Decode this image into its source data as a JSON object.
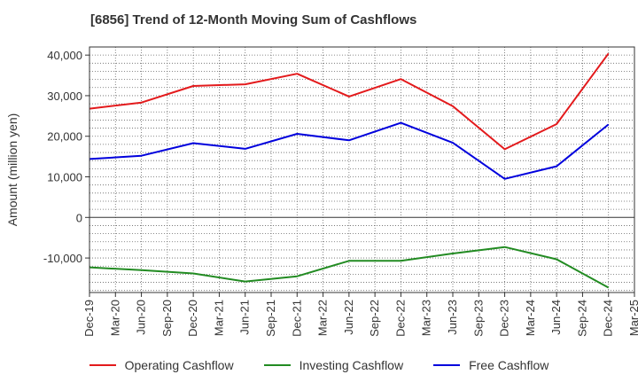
{
  "chart_data": {
    "type": "line",
    "title": "[6856]  Trend of 12-Month Moving Sum of Cashflows",
    "xlabel": "",
    "ylabel": "Amount (million yen)",
    "ylim": [
      -18500,
      42000
    ],
    "yticks": [
      -10000,
      0,
      10000,
      20000,
      30000,
      40000
    ],
    "ytick_labels": [
      "-10,000",
      "0",
      "10,000",
      "20,000",
      "30,000",
      "40,000"
    ],
    "grid": true,
    "legend_position": "bottom",
    "categories": [
      "Dec-19",
      "Mar-20",
      "Jun-20",
      "Sep-20",
      "Dec-20",
      "Mar-21",
      "Jun-21",
      "Sep-21",
      "Dec-21",
      "Mar-22",
      "Jun-22",
      "Sep-22",
      "Dec-22",
      "Mar-23",
      "Jun-23",
      "Sep-23",
      "Dec-23",
      "Mar-24",
      "Jun-24",
      "Sep-24",
      "Dec-24",
      "Mar-25"
    ],
    "series": [
      {
        "name": "Operating Cashflow",
        "color": "#e31a1c",
        "values": [
          26800,
          null,
          28300,
          null,
          32400,
          null,
          32800,
          null,
          35400,
          null,
          29800,
          null,
          34100,
          null,
          27400,
          null,
          16800,
          null,
          23000,
          null,
          40400,
          null
        ]
      },
      {
        "name": "Investing Cashflow",
        "color": "#228b22",
        "values": [
          -12300,
          null,
          -13000,
          null,
          -13800,
          null,
          -15800,
          null,
          -14500,
          null,
          -10700,
          null,
          -10700,
          null,
          -8900,
          null,
          -7300,
          null,
          -10300,
          null,
          -17300,
          null
        ]
      },
      {
        "name": "Free Cashflow",
        "color": "#0000dd",
        "values": [
          14400,
          null,
          15200,
          null,
          18300,
          null,
          16900,
          null,
          20600,
          null,
          19000,
          null,
          23300,
          null,
          18400,
          null,
          9500,
          null,
          12600,
          null,
          22900,
          null
        ]
      }
    ]
  }
}
